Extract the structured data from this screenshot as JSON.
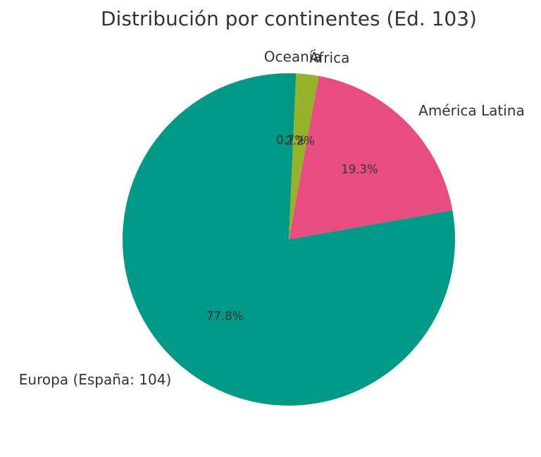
{
  "chart_data": {
    "type": "pie",
    "title": "Distribución por continentes (Ed. 103)",
    "start_angle_deg": 90,
    "direction": "clockwise",
    "slices": [
      {
        "label": "Oceanía",
        "value": 0.7,
        "pct_label": "0.7%",
        "color": "#009784"
      },
      {
        "label": "África",
        "value": 2.2,
        "pct_label": "2.2%",
        "color": "#96b22b"
      },
      {
        "label": "América Latina",
        "value": 19.3,
        "pct_label": "19.3%",
        "color": "#e84d82"
      },
      {
        "label": "Europa (España: 104)",
        "value": 77.8,
        "pct_label": "77.8%",
        "color": "#009886"
      }
    ],
    "legend": "none (labels placed around pie)"
  }
}
